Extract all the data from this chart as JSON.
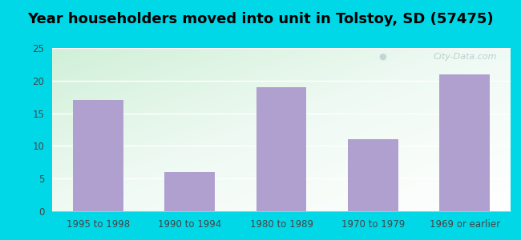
{
  "title": "Year householders moved into unit in Tolstoy, SD (57475)",
  "categories": [
    "1995 to 1998",
    "1990 to 1994",
    "1980 to 1989",
    "1970 to 1979",
    "1969 or earlier"
  ],
  "values": [
    17,
    6,
    19,
    11,
    21
  ],
  "bar_color": "#b0a0d0",
  "ylim": [
    0,
    25
  ],
  "yticks": [
    0,
    5,
    10,
    15,
    20,
    25
  ],
  "background_outer": "#00d8e8",
  "grid_color": "#ffffff",
  "title_fontsize": 13,
  "tick_fontsize": 8.5,
  "watermark": "City-Data.com"
}
